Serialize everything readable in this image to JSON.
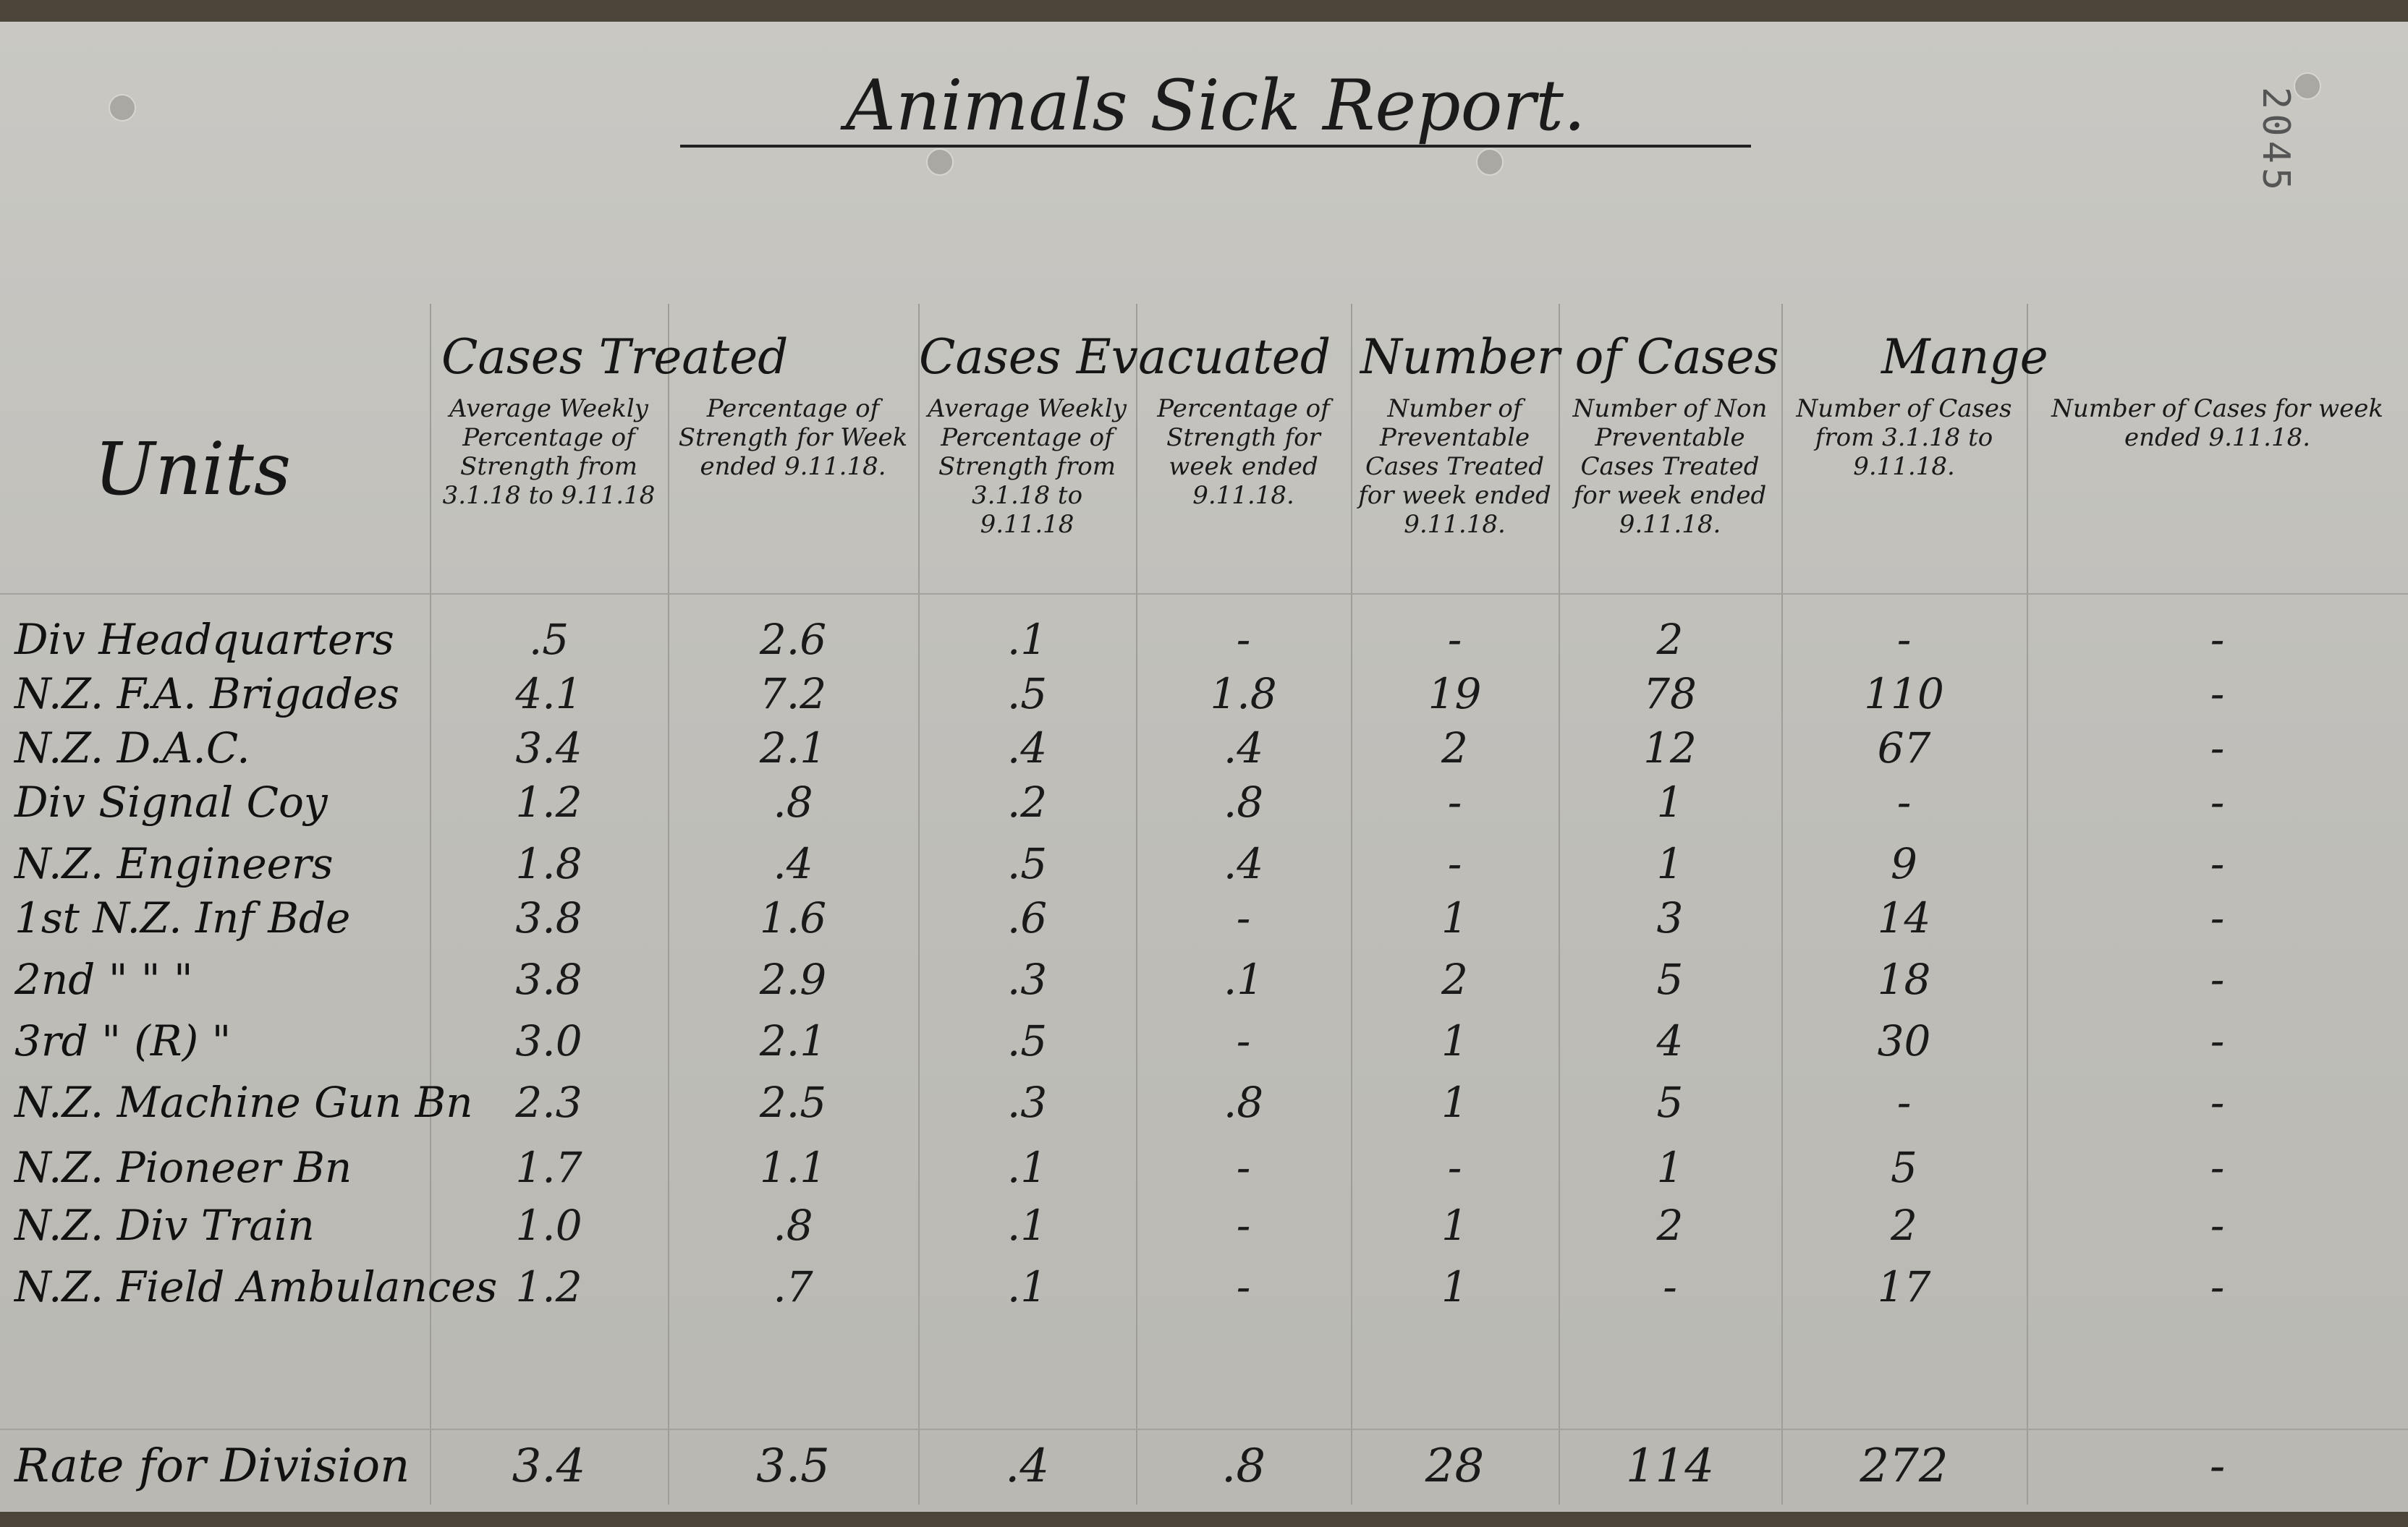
{
  "title": "Animals Sick Report.",
  "stamp_number": "2045",
  "header": {
    "units": "Units",
    "groups": [
      "Cases Treated",
      "Cases Evacuated",
      "Number of Cases",
      "Mange"
    ],
    "columns": [
      "Average Weekly Percentage of Strength from 3.1.18 to 9.11.18",
      "Percentage of Strength for Week ended 9.11.18.",
      "Average Weekly Percentage of Strength from 3.1.18 to 9.11.18",
      "Percentage of Strength for week ended 9.11.18.",
      "Number of Preventable Cases Treated for week ended 9.11.18.",
      "Number of Non Preventable Cases Treated for week ended 9.11.18.",
      "Number of Cases from 3.1.18 to 9.11.18.",
      "Number of Cases for week ended 9.11.18."
    ]
  },
  "rows": [
    {
      "unit": "Div Headquarters",
      "values": [
        ".5",
        "2.6",
        ".1",
        "-",
        "-",
        "2",
        "-",
        "-"
      ]
    },
    {
      "unit": "N.Z. F.A. Brigades",
      "values": [
        "4.1",
        "7.2",
        ".5",
        "1.8",
        "19",
        "78",
        "110",
        "-"
      ]
    },
    {
      "unit": "N.Z. D.A.C.",
      "values": [
        "3.4",
        "2.1",
        ".4",
        ".4",
        "2",
        "12",
        "67",
        "-"
      ]
    },
    {
      "unit": "Div Signal Coy",
      "values": [
        "1.2",
        ".8",
        ".2",
        ".8",
        "-",
        "1",
        "-",
        "-"
      ]
    },
    {
      "unit": "N.Z. Engineers",
      "values": [
        "1.8",
        ".4",
        ".5",
        ".4",
        "-",
        "1",
        "9",
        "-"
      ]
    },
    {
      "unit": "1st N.Z. Inf Bde",
      "values": [
        "3.8",
        "1.6",
        ".6",
        "-",
        "1",
        "3",
        "14",
        "-"
      ]
    },
    {
      "unit": "2nd \"  \"  \"",
      "values": [
        "3.8",
        "2.9",
        ".3",
        ".1",
        "2",
        "5",
        "18",
        "-"
      ]
    },
    {
      "unit": "3rd \"  (R) \"",
      "values": [
        "3.0",
        "2.1",
        ".5",
        "-",
        "1",
        "4",
        "30",
        "-"
      ]
    },
    {
      "unit": "N.Z. Machine Gun Bn",
      "values": [
        "2.3",
        "2.5",
        ".3",
        ".8",
        "1",
        "5",
        "-",
        "-"
      ]
    },
    {
      "unit": "N.Z. Pioneer Bn",
      "values": [
        "1.7",
        "1.1",
        ".1",
        "-",
        "-",
        "1",
        "5",
        "-"
      ]
    },
    {
      "unit": "N.Z. Div Train",
      "values": [
        "1.0",
        ".8",
        ".1",
        "-",
        "1",
        "2",
        "2",
        "-"
      ]
    },
    {
      "unit": "N.Z. Field Ambulances",
      "values": [
        "1.2",
        ".7",
        ".1",
        "-",
        "1",
        "-",
        "17",
        "-"
      ]
    }
  ],
  "total": {
    "unit": "Rate for Division",
    "values": [
      "3.4",
      "3.5",
      ".4",
      ".8",
      "28",
      "114",
      "272",
      "-"
    ]
  }
}
